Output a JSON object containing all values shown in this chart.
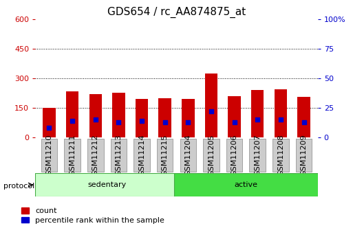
{
  "title": "GDS654 / rc_AA874875_at",
  "samples": [
    "GSM11210",
    "GSM11211",
    "GSM11212",
    "GSM11213",
    "GSM11214",
    "GSM11215",
    "GSM11204",
    "GSM11205",
    "GSM11206",
    "GSM11207",
    "GSM11208",
    "GSM11209"
  ],
  "counts": [
    150,
    235,
    220,
    225,
    195,
    200,
    195,
    325,
    210,
    240,
    245,
    205
  ],
  "percentile_ranks": [
    8,
    14,
    15,
    13,
    14,
    13,
    13,
    22,
    13,
    15,
    15,
    13
  ],
  "sedentary_indices": [
    0,
    1,
    2,
    3,
    4,
    5
  ],
  "active_indices": [
    6,
    7,
    8,
    9,
    10,
    11
  ],
  "protocol_label": "protocol",
  "sedentary_label": "sedentary",
  "active_label": "active",
  "legend_count": "count",
  "legend_percentile": "percentile rank within the sample",
  "ylim_left": [
    0,
    600
  ],
  "ylim_right": [
    0,
    100
  ],
  "yticks_left": [
    0,
    150,
    300,
    450,
    600
  ],
  "ytick_labels_left": [
    "0",
    "150",
    "300",
    "450",
    "600"
  ],
  "yticks_right": [
    0,
    25,
    50,
    75,
    100
  ],
  "ytick_labels_right": [
    "0",
    "25",
    "50",
    "75",
    "100%"
  ],
  "bar_color": "#cc0000",
  "dot_color": "#0000cc",
  "left_tick_color": "#cc0000",
  "right_tick_color": "#0000cc",
  "title_fontsize": 11,
  "axis_fontsize": 8,
  "label_fontsize": 8,
  "bar_width": 0.55,
  "bg_plot": "#ffffff",
  "xticklabel_bg": "#cccccc",
  "xticklabel_edge": "#888888",
  "sedentary_color": "#ccffcc",
  "active_color": "#44dd44",
  "grid_color": "#000000"
}
